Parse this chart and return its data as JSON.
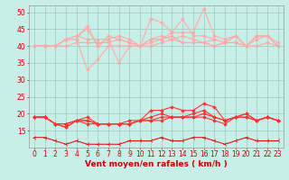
{
  "bg_color": "#c8eee8",
  "grid_color": "#99ccbb",
  "x_values": [
    0,
    1,
    2,
    3,
    4,
    5,
    6,
    7,
    8,
    9,
    10,
    11,
    12,
    13,
    14,
    15,
    16,
    17,
    18,
    19,
    20,
    21,
    22,
    23
  ],
  "series": [
    {
      "color": "#ffaaaa",
      "marker": "D",
      "markersize": 1.8,
      "linewidth": 0.8,
      "values": [
        40,
        40,
        40,
        40,
        41,
        41,
        41,
        41,
        42,
        41,
        40,
        41,
        42,
        43,
        41,
        41,
        41,
        42,
        41,
        41,
        40,
        40,
        41,
        40
      ]
    },
    {
      "color": "#ffaaaa",
      "marker": "D",
      "markersize": 1.8,
      "linewidth": 0.8,
      "values": [
        40,
        40,
        40,
        42,
        43,
        45,
        40,
        42,
        43,
        42,
        40,
        42,
        43,
        42,
        43,
        42,
        41,
        40,
        41,
        43,
        40,
        43,
        43,
        40
      ]
    },
    {
      "color": "#ffaaaa",
      "marker": "D",
      "markersize": 1.8,
      "linewidth": 0.8,
      "values": [
        40,
        40,
        40,
        42,
        42,
        46,
        40,
        43,
        42,
        41,
        40,
        48,
        47,
        44,
        48,
        43,
        43,
        42,
        41,
        43,
        40,
        43,
        43,
        41
      ]
    },
    {
      "color": "#ffaaaa",
      "marker": "D",
      "markersize": 1.8,
      "linewidth": 0.8,
      "values": [
        40,
        40,
        40,
        42,
        43,
        42,
        42,
        42,
        35,
        40,
        40,
        42,
        42,
        44,
        44,
        44,
        51,
        43,
        42,
        43,
        40,
        43,
        43,
        40
      ]
    },
    {
      "color": "#ffaaaa",
      "marker": "D",
      "markersize": 1.8,
      "linewidth": 0.8,
      "values": [
        40,
        40,
        40,
        42,
        42,
        33,
        36,
        40,
        40,
        40,
        40,
        40,
        41,
        42,
        41,
        41,
        41,
        40,
        41,
        41,
        40,
        42,
        43,
        40
      ]
    },
    {
      "color": "#ff3333",
      "marker": "D",
      "markersize": 1.8,
      "linewidth": 0.8,
      "values": [
        19,
        19,
        17,
        16,
        18,
        19,
        17,
        17,
        17,
        17,
        18,
        21,
        21,
        22,
        21,
        21,
        23,
        22,
        18,
        19,
        20,
        18,
        19,
        18
      ]
    },
    {
      "color": "#ff3333",
      "marker": "D",
      "markersize": 1.8,
      "linewidth": 0.8,
      "values": [
        19,
        19,
        17,
        16,
        18,
        18,
        17,
        17,
        17,
        18,
        18,
        19,
        20,
        19,
        19,
        20,
        21,
        19,
        18,
        19,
        20,
        18,
        19,
        18
      ]
    },
    {
      "color": "#ff3333",
      "marker": "D",
      "markersize": 1.8,
      "linewidth": 0.8,
      "values": [
        19,
        19,
        17,
        17,
        18,
        18,
        17,
        17,
        17,
        17,
        18,
        18,
        19,
        19,
        19,
        19,
        20,
        19,
        18,
        19,
        19,
        18,
        19,
        18
      ]
    },
    {
      "color": "#ff3333",
      "marker": "D",
      "markersize": 1.8,
      "linewidth": 0.8,
      "values": [
        19,
        19,
        17,
        17,
        18,
        17,
        17,
        17,
        17,
        17,
        18,
        18,
        18,
        19,
        19,
        19,
        19,
        18,
        17,
        19,
        19,
        18,
        19,
        18
      ]
    },
    {
      "color": "#dd0000",
      "marker": "3",
      "markersize": 3.5,
      "linewidth": 0.7,
      "values": [
        13,
        13,
        12,
        11,
        12,
        11,
        11,
        11,
        11,
        12,
        12,
        12,
        13,
        12,
        12,
        13,
        13,
        12,
        11,
        12,
        13,
        12,
        12,
        12
      ]
    }
  ],
  "xlabel": "Vent moyen/en rafales ( km/h )",
  "xlim": [
    -0.5,
    23.5
  ],
  "ylim": [
    10,
    52
  ],
  "yticks": [
    15,
    20,
    25,
    30,
    35,
    40,
    45,
    50
  ],
  "xticks": [
    0,
    1,
    2,
    3,
    4,
    5,
    6,
    7,
    8,
    9,
    10,
    11,
    12,
    13,
    14,
    15,
    16,
    17,
    18,
    19,
    20,
    21,
    22,
    23
  ],
  "xlabel_fontsize": 6.5,
  "tick_fontsize": 5.5
}
